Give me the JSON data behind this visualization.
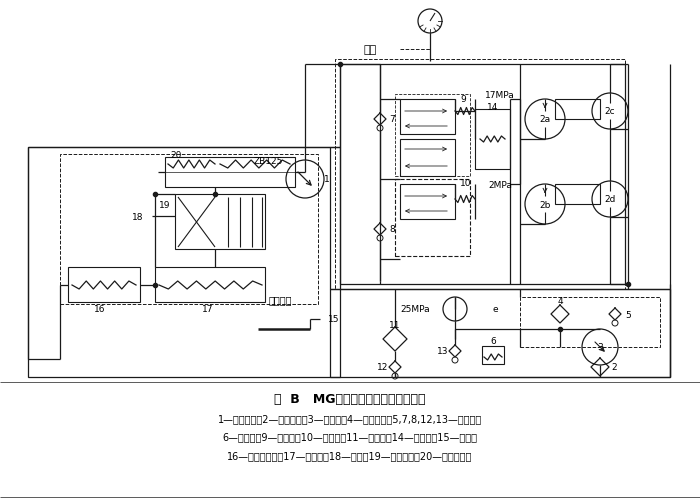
{
  "title": "图  B   MG系列采煤机牵引部液压系统",
  "caption_line1": "1—主液压泵；2—粗过滤器；3—辅助泵；4—精过滤器；5,7,8,12,13—单向阀；",
  "caption_line2": "6—溢流阀；9—整流阀；10—背压阀；11—冷却器；14—安全阀；15—手把；",
  "caption_line3": "16—回零液压缸；17—调速套；18—杠杆；19—随动滑阀；20—变量液压缸",
  "valve_group_label": "阀组",
  "ZB125_label": "ZB125",
  "speed_mech_label": "调速机构",
  "pressure_17MPa": "17MPa",
  "pressure_2MPa": "2MPa",
  "pressure_25MPa": "25MPa",
  "bg_color": "#ffffff",
  "lc": "#1a1a1a",
  "lw": 0.9
}
